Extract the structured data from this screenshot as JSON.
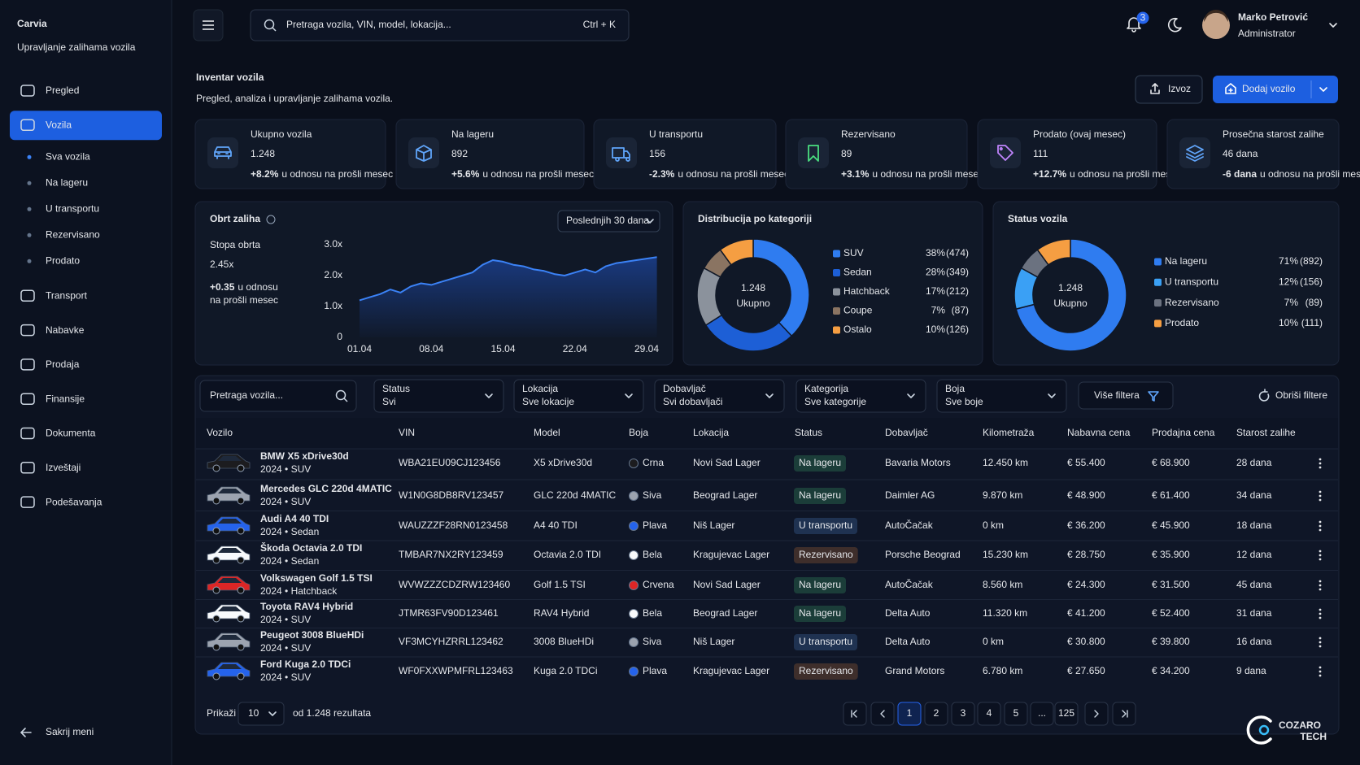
{
  "brand": {
    "name": "Carvia",
    "tagline": "Upravljanje zalihama vozila"
  },
  "sidebar": {
    "nav": [
      {
        "label": "Pregled"
      },
      {
        "label": "Vozila",
        "active": true,
        "children": [
          {
            "label": "Sva vozila",
            "active": true
          },
          {
            "label": "Na lageru"
          },
          {
            "label": "U transportu"
          },
          {
            "label": "Rezervisano"
          },
          {
            "label": "Prodato"
          }
        ]
      },
      {
        "label": "Transport"
      },
      {
        "label": "Nabavke"
      },
      {
        "label": "Prodaja"
      },
      {
        "label": "Finansije"
      },
      {
        "label": "Dokumenta"
      },
      {
        "label": "Izveštaji"
      },
      {
        "label": "Podešavanja"
      }
    ],
    "collapse": "Sakrij meni"
  },
  "header": {
    "search_placeholder": "Pretraga vozila, VIN, model, lokacija...",
    "shortcut": "Ctrl + K",
    "notifications": "3",
    "user": {
      "name": "Marko Petrović",
      "role": "Administrator"
    }
  },
  "page": {
    "title": "Inventar vozila",
    "subtitle": "Pregled, analiza i upravljanje zalihama vozila.",
    "actions": [
      "Izvoz",
      "Dodaj vozilo"
    ]
  },
  "kpi_note": "u odnosu na prošli mesec",
  "kpis": [
    {
      "label": "Ukupno vozila",
      "value": "1.248",
      "change": "+8.2%",
      "change_color": "#4ade80"
    },
    {
      "label": "Na lageru",
      "value": "892",
      "change": "+5.6%",
      "change_color": "#4ade80"
    },
    {
      "label": "U transportu",
      "value": "156",
      "change": "-2.3%",
      "change_color": "#f87171"
    },
    {
      "label": "Rezervisano",
      "value": "89",
      "change": "+3.1%",
      "change_color": "#4ade80"
    },
    {
      "label": "Prodato (ovaj mesec)",
      "value": "111",
      "change": "+12.7%",
      "change_color": "#4ade80"
    },
    {
      "label": "Prosečna starost zalihe",
      "value": "46 dana",
      "change": "-6 dana",
      "change_color": "#4ade80"
    }
  ],
  "turnover": {
    "title": "Obrt zaliha",
    "period": "Poslednjih 30 dana",
    "metric_label": "Stopa obrta",
    "metric": "2.45x",
    "change": "+0.35",
    "change_note": "u odnosu",
    "change_note_2": "na prošli mesec",
    "chart_data": {
      "type": "line",
      "categories": [
        "01.04",
        null,
        null,
        null,
        null,
        null,
        null,
        "08.04",
        null,
        null,
        null,
        null,
        null,
        null,
        "15.04",
        null,
        null,
        null,
        null,
        null,
        null,
        "22.04",
        null,
        null,
        null,
        null,
        null,
        null,
        "29.04",
        null
      ],
      "values": [
        1.2,
        1.3,
        1.4,
        1.55,
        1.45,
        1.65,
        1.75,
        1.7,
        1.8,
        1.9,
        2.0,
        2.1,
        2.35,
        2.5,
        2.45,
        2.35,
        2.3,
        2.2,
        2.15,
        2.05,
        2.0,
        2.1,
        2.2,
        2.1,
        2.3,
        2.4,
        2.45,
        2.5,
        2.55,
        2.6
      ],
      "color": "#3b82f6",
      "ylim": [
        0,
        3
      ],
      "yticks": [
        0,
        {
          "value": 1,
          "label": "1.0x"
        },
        {
          "value": 2,
          "label": "2.0x"
        },
        {
          "value": 3,
          "label": "3.0x"
        }
      ]
    }
  },
  "distribution": {
    "title": "Distribucija po kategoriji",
    "center": "1.248",
    "center_label": "Ukupno",
    "chart_data": {
      "type": "pie",
      "categories": [
        "SUV",
        "Sedan",
        "Hatchback",
        "Coupe",
        "Ostalo"
      ],
      "values": [
        38,
        28,
        17,
        7,
        10
      ],
      "value_labels": [
        "38%",
        "28%",
        "17%",
        "7%",
        "10%"
      ],
      "count_labels": [
        "(474)",
        "(349)",
        "(212)",
        "(87)",
        "(126)"
      ],
      "colors": [
        "#2f7cf0",
        "#1d5fd6",
        "#8b929c",
        "#8a7462",
        "#f59e42"
      ]
    }
  },
  "status": {
    "title": "Status vozila",
    "center": "1.248",
    "center_label": "Ukupno",
    "chart_data": {
      "type": "pie",
      "categories": [
        "Na lageru",
        "U transportu",
        "Rezervisano",
        "Prodato"
      ],
      "values": [
        71,
        12,
        7,
        10
      ],
      "value_labels": [
        "71%",
        "12%",
        "7%",
        "10%"
      ],
      "count_labels": [
        "(892)",
        "(156)",
        "(89)",
        "(111)"
      ],
      "colors": [
        "#2f7cf0",
        "#3aa0f5",
        "#6b7280",
        "#f59e42"
      ]
    }
  },
  "filters": {
    "search": "Pretraga vozila...",
    "fields": [
      {
        "label": "Status",
        "value": "Svi"
      },
      {
        "label": "Lokacija",
        "value": "Sve lokacije"
      },
      {
        "label": "Dobavljač",
        "value": "Svi dobavljači"
      },
      {
        "label": "Kategorija",
        "value": "Sve kategorije"
      },
      {
        "label": "Boja",
        "value": "Sve boje"
      }
    ],
    "more": "Više filtera",
    "clear": "Obriši filtere"
  },
  "table": {
    "columns": [
      "Vozilo",
      "VIN",
      "Model",
      "Boja",
      "Lokacija",
      "Status",
      "Dobavljač",
      "Kilometraža",
      "Nabavna cena",
      "Prodajna cena",
      "Starost zalihe"
    ],
    "rows": [
      {
        "name": "BMW X5 xDrive30d",
        "sub": "2024 • SUV",
        "vin": "WBA21EU09CJ123456",
        "model": "X5 xDrive30d",
        "color": "Crna",
        "swatch": "#1c1c1f",
        "location": "Novi Sad Lager",
        "status": "Na lageru",
        "status_color": "#4ade80",
        "supplier": "Bavaria Motors",
        "km": "12.450 km",
        "buy": "€ 55.400",
        "sell": "€ 68.900",
        "age": "28 dana"
      },
      {
        "name": "Mercedes GLC 220d 4MATIC",
        "sub": "2024 • SUV",
        "vin": "W1N0G8DB8RV123457",
        "model": "GLC 220d 4MATIC",
        "color": "Siva",
        "swatch": "#9ca3af",
        "location": "Beograd Lager",
        "status": "Na lageru",
        "status_color": "#4ade80",
        "supplier": "Daimler AG",
        "km": "9.870 km",
        "buy": "€ 48.900",
        "sell": "€ 61.400",
        "age": "34 dana"
      },
      {
        "name": "Audi A4 40 TDI",
        "sub": "2024 • Sedan",
        "vin": "WAUZZZF28RN0123458",
        "model": "A4 40 TDI",
        "color": "Plava",
        "swatch": "#2563eb",
        "location": "Niš Lager",
        "status": "U transportu",
        "status_color": "#60a5fa",
        "supplier": "AutoČačak",
        "km": "0 km",
        "buy": "€ 36.200",
        "sell": "€ 45.900",
        "age": "18 dana"
      },
      {
        "name": "Škoda Octavia 2.0 TDI",
        "sub": "2024 • Sedan",
        "vin": "TMBAR7NX2RY123459",
        "model": "Octavia 2.0 TDI",
        "color": "Bela",
        "swatch": "#f8fafc",
        "location": "Kragujevac Lager",
        "status": "Rezervisano",
        "status_color": "#fb923c",
        "supplier": "Porsche Beograd",
        "km": "15.230 km",
        "buy": "€ 28.750",
        "sell": "€ 35.900",
        "age": "12 dana"
      },
      {
        "name": "Volkswagen Golf 1.5 TSI",
        "sub": "2024 • Hatchback",
        "vin": "WVWZZZCDZRW123460",
        "model": "Golf 1.5 TSI",
        "color": "Crvena",
        "swatch": "#dc2626",
        "location": "Novi Sad Lager",
        "status": "Na lageru",
        "status_color": "#4ade80",
        "supplier": "AutoČačak",
        "km": "8.560 km",
        "buy": "€ 24.300",
        "sell": "€ 31.500",
        "age": "45 dana"
      },
      {
        "name": "Toyota RAV4 Hybrid",
        "sub": "2024 • SUV",
        "vin": "JTMR63FV90D123461",
        "model": "RAV4 Hybrid",
        "color": "Bela",
        "swatch": "#f8fafc",
        "location": "Beograd Lager",
        "status": "Na lageru",
        "status_color": "#4ade80",
        "supplier": "Delta Auto",
        "km": "11.320 km",
        "buy": "€ 41.200",
        "sell": "€ 52.400",
        "age": "31 dana"
      },
      {
        "name": "Peugeot 3008 BlueHDi",
        "sub": "2024 • SUV",
        "vin": "VF3MCYHZRRL123462",
        "model": "3008 BlueHDi",
        "color": "Siva",
        "swatch": "#9ca3af",
        "location": "Niš Lager",
        "status": "U transportu",
        "status_color": "#60a5fa",
        "supplier": "Delta Auto",
        "km": "0 km",
        "buy": "€ 30.800",
        "sell": "€ 39.800",
        "age": "16 dana"
      },
      {
        "name": "Ford Kuga 2.0 TDCi",
        "sub": "2024 • SUV",
        "vin": "WF0FXXWPMFRL123463",
        "model": "Kuga 2.0 TDCi",
        "color": "Plava",
        "swatch": "#2563eb",
        "location": "Kragujevac Lager",
        "status": "Rezervisano",
        "status_color": "#fb923c",
        "supplier": "Grand Motors",
        "km": "6.780 km",
        "buy": "€ 27.650",
        "sell": "€ 34.200",
        "age": "9 dana"
      }
    ]
  },
  "pagination": {
    "show_label": "Prikaži",
    "page_size": "10",
    "total": "od 1.248 rezultata",
    "pages": [
      "1",
      "2",
      "3",
      "4",
      "5",
      "...",
      "125"
    ],
    "current": "1"
  },
  "logo": {
    "name": "COZARO",
    "sub": "TECH"
  }
}
